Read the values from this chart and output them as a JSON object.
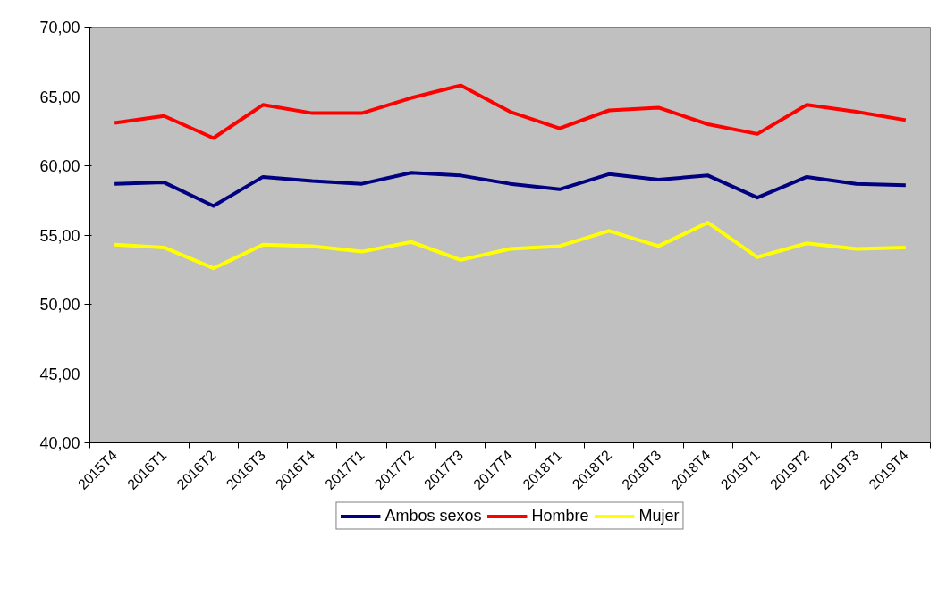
{
  "chart_data": {
    "type": "line",
    "categories": [
      "2015T4",
      "2016T1",
      "2016T2",
      "2016T3",
      "2016T4",
      "2017T1",
      "2017T2",
      "2017T3",
      "2017T4",
      "2018T1",
      "2018T2",
      "2018T3",
      "2018T4",
      "2019T1",
      "2019T2",
      "2019T3",
      "2019T4"
    ],
    "series": [
      {
        "name": "Ambos sexos",
        "color": "#000080",
        "values": [
          58.7,
          58.8,
          57.1,
          59.2,
          58.9,
          58.7,
          59.5,
          59.3,
          58.7,
          58.3,
          59.4,
          59.0,
          59.3,
          57.7,
          59.2,
          58.7,
          58.6
        ]
      },
      {
        "name": "Hombre",
        "color": "#ff0000",
        "values": [
          63.1,
          63.6,
          62.0,
          64.4,
          63.8,
          63.8,
          64.9,
          65.8,
          63.9,
          62.7,
          64.0,
          64.2,
          63.0,
          62.3,
          64.4,
          63.9,
          63.3
        ]
      },
      {
        "name": "Mujer",
        "color": "#ffff00",
        "values": [
          54.3,
          54.1,
          52.6,
          54.3,
          54.2,
          53.8,
          54.5,
          53.2,
          54.0,
          54.2,
          55.3,
          54.2,
          55.9,
          53.4,
          54.4,
          54.0,
          54.1
        ]
      }
    ],
    "ylim": [
      40,
      70
    ],
    "yticks": [
      {
        "value": 40,
        "label": "40,00"
      },
      {
        "value": 45,
        "label": "45,00"
      },
      {
        "value": 50,
        "label": "50,00"
      },
      {
        "value": 55,
        "label": "55,00"
      },
      {
        "value": 60,
        "label": "60,00"
      },
      {
        "value": 65,
        "label": "65,00"
      },
      {
        "value": 70,
        "label": "70,00"
      }
    ],
    "grid": false,
    "legend": "bottom",
    "marker": "none",
    "line_style": "solid"
  }
}
